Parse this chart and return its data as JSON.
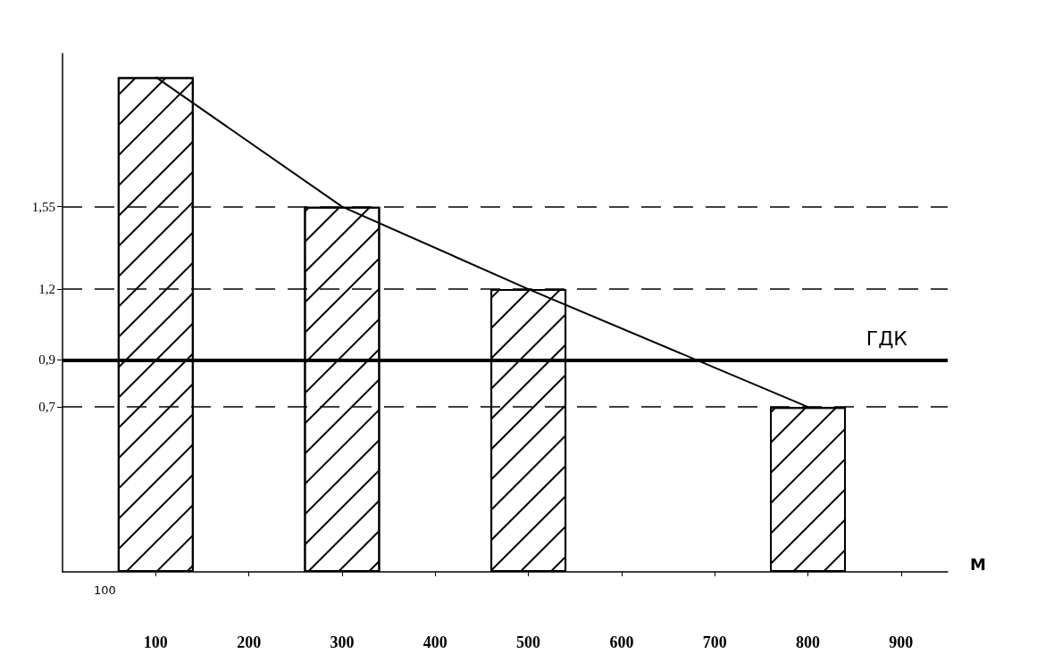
{
  "chart_data": {
    "type": "bar",
    "xlabel": "М",
    "x": [
      100,
      300,
      500,
      800
    ],
    "series": [
      {
        "color": "#ffffff",
        "values": [
          2.1,
          1.55,
          1.2,
          0.7
        ]
      },
      {
        "type": "line",
        "color": "#000000",
        "values": [
          2.1,
          1.55,
          1.2,
          0.7
        ]
      }
    ],
    "xlim": [
      0,
      950
    ],
    "xticks": [
      100,
      200,
      300,
      400,
      500,
      600,
      700,
      800,
      900
    ],
    "ylim": [
      0,
      2.2
    ],
    "yticks": [
      {
        "value": 0.7,
        "label": "0,7"
      },
      {
        "value": 0.9,
        "label": "0,9"
      },
      {
        "value": 1.2,
        "label": "1,2"
      },
      {
        "value": 1.55,
        "label": "1,55"
      }
    ],
    "ref_lines": [
      {
        "axis": "y",
        "value": 1.55,
        "line_style": "dashed"
      },
      {
        "axis": "y",
        "value": 1.2,
        "line_style": "dashed"
      },
      {
        "axis": "y",
        "value": 0.7,
        "line_style": "dashed"
      },
      {
        "axis": "y",
        "value": 0.9,
        "label": "ГДК",
        "line_style": "solid"
      }
    ],
    "annotations": [
      "100"
    ],
    "grid": false,
    "marker": "none"
  }
}
